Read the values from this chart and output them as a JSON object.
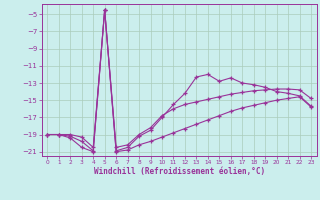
{
  "xlabel": "Windchill (Refroidissement éolien,°C)",
  "bg_color": "#cbeeed",
  "line_color": "#993399",
  "grid_color": "#aaccbb",
  "xlim": [
    -0.5,
    23.5
  ],
  "ylim": [
    -21.5,
    -3.8
  ],
  "xticks": [
    0,
    1,
    2,
    3,
    4,
    5,
    6,
    7,
    8,
    9,
    10,
    11,
    12,
    13,
    14,
    15,
    16,
    17,
    18,
    19,
    20,
    21,
    22,
    23
  ],
  "yticks": [
    -21,
    -19,
    -17,
    -15,
    -13,
    -11,
    -9,
    -7,
    -5
  ],
  "series": [
    {
      "x": [
        0,
        1,
        2,
        3,
        4,
        5,
        6,
        7,
        8,
        9,
        10,
        11,
        12,
        13,
        14,
        15,
        16,
        17,
        18,
        19,
        20,
        21,
        22,
        23
      ],
      "y": [
        -19.0,
        -19.0,
        -19.2,
        -19.8,
        -20.9,
        -4.5,
        -20.9,
        -20.5,
        -19.2,
        -18.5,
        -17.0,
        -15.5,
        -14.2,
        -12.3,
        -12.0,
        -12.8,
        -12.4,
        -13.0,
        -13.2,
        -13.5,
        -14.0,
        -14.2,
        -14.5,
        -15.7
      ]
    },
    {
      "x": [
        0,
        1,
        2,
        3,
        4,
        5,
        6,
        7,
        8,
        9,
        10,
        11,
        12,
        13,
        14,
        15,
        16,
        17,
        18,
        19,
        20,
        21,
        22,
        23
      ],
      "y": [
        -19.0,
        -19.0,
        -19.0,
        -19.3,
        -20.5,
        -4.5,
        -20.5,
        -20.2,
        -19.0,
        -18.2,
        -16.8,
        -16.0,
        -15.5,
        -15.2,
        -14.9,
        -14.6,
        -14.3,
        -14.1,
        -13.9,
        -13.8,
        -13.7,
        -13.7,
        -13.8,
        -14.8
      ]
    },
    {
      "x": [
        0,
        1,
        2,
        3,
        4,
        5,
        6,
        7,
        8,
        9,
        10,
        11,
        12,
        13,
        14,
        15,
        16,
        17,
        18,
        19,
        20,
        21,
        22,
        23
      ],
      "y": [
        -19.0,
        -19.0,
        -19.4,
        -20.5,
        -21.0,
        -4.5,
        -21.0,
        -20.8,
        -20.2,
        -19.8,
        -19.3,
        -18.8,
        -18.3,
        -17.8,
        -17.3,
        -16.8,
        -16.3,
        -15.9,
        -15.6,
        -15.3,
        -15.0,
        -14.8,
        -14.6,
        -15.8
      ]
    }
  ]
}
